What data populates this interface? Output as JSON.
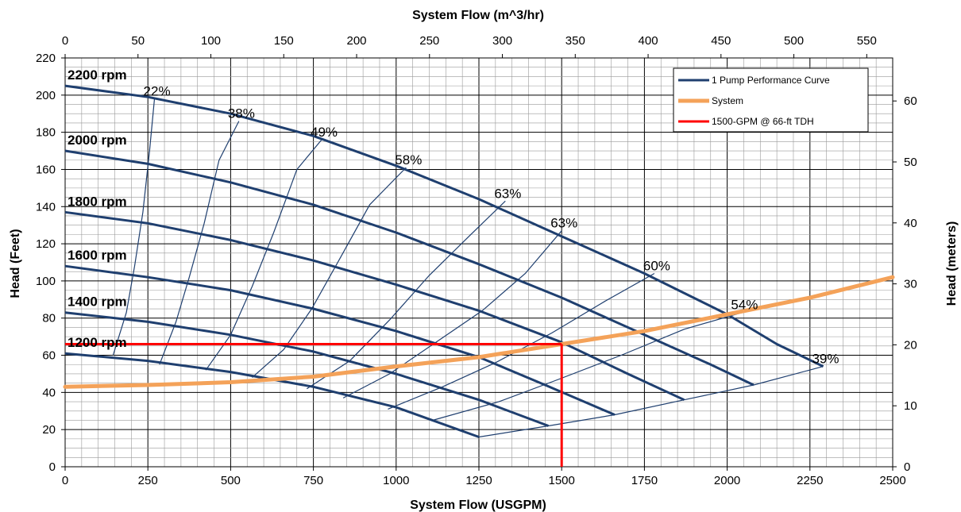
{
  "chart_data": {
    "type": "line",
    "top_axis_title": "System Flow (m^3/hr)",
    "bottom_axis_title": "System Flow (USGPM)",
    "left_axis_title": "Head (Feet)",
    "right_axis_title": "Head (meters)",
    "xlim": [
      0,
      2500
    ],
    "ylim": [
      0,
      220
    ],
    "x_ticks": [
      0,
      250,
      500,
      750,
      1000,
      1250,
      1500,
      1750,
      2000,
      2250,
      2500
    ],
    "y_ticks": [
      0,
      20,
      40,
      60,
      80,
      100,
      120,
      140,
      160,
      180,
      200,
      220
    ],
    "top_ticks": [
      0,
      50,
      100,
      150,
      200,
      250,
      300,
      350,
      400,
      450,
      500,
      550
    ],
    "right_ticks": [
      0,
      10,
      20,
      30,
      40,
      50,
      60
    ],
    "grid": true,
    "legend_position": "top-right",
    "legend": [
      {
        "name": "1  Pump Performance Curve",
        "color": "#1f3f6f"
      },
      {
        "name": "System",
        "color": "#f4a259"
      },
      {
        "name": "1500-GPM @ 66-ft TDH",
        "color": "#ff0000"
      }
    ],
    "speed_curves": [
      {
        "label": "2200 rpm",
        "points": [
          [
            0,
            205
          ],
          [
            250,
            199
          ],
          [
            500,
            190
          ],
          [
            750,
            178
          ],
          [
            1000,
            162
          ],
          [
            1250,
            144
          ],
          [
            1500,
            124
          ],
          [
            1750,
            104
          ],
          [
            2000,
            82
          ],
          [
            2150,
            66
          ],
          [
            2290,
            54
          ]
        ]
      },
      {
        "label": "2000 rpm",
        "points": [
          [
            0,
            170
          ],
          [
            250,
            163
          ],
          [
            500,
            153
          ],
          [
            750,
            141
          ],
          [
            1000,
            126
          ],
          [
            1250,
            109
          ],
          [
            1500,
            91
          ],
          [
            1750,
            71
          ],
          [
            1950,
            55
          ],
          [
            2080,
            44
          ]
        ]
      },
      {
        "label": "1800 rpm",
        "points": [
          [
            0,
            137
          ],
          [
            250,
            131
          ],
          [
            500,
            122
          ],
          [
            750,
            111
          ],
          [
            1000,
            98
          ],
          [
            1250,
            84
          ],
          [
            1500,
            67
          ],
          [
            1700,
            50
          ],
          [
            1870,
            36
          ]
        ]
      },
      {
        "label": "1600 rpm",
        "points": [
          [
            0,
            108
          ],
          [
            250,
            102
          ],
          [
            500,
            95
          ],
          [
            750,
            85
          ],
          [
            1000,
            73
          ],
          [
            1250,
            59
          ],
          [
            1450,
            44
          ],
          [
            1660,
            28
          ]
        ]
      },
      {
        "label": "1400 rpm",
        "points": [
          [
            0,
            83
          ],
          [
            250,
            78
          ],
          [
            500,
            71
          ],
          [
            750,
            62
          ],
          [
            1000,
            50
          ],
          [
            1250,
            36
          ],
          [
            1460,
            22
          ]
        ]
      },
      {
        "label": "1200 rpm",
        "points": [
          [
            0,
            61
          ],
          [
            250,
            57
          ],
          [
            500,
            51
          ],
          [
            750,
            43
          ],
          [
            1000,
            32
          ],
          [
            1250,
            16
          ]
        ]
      }
    ],
    "efficiency_lines": [
      {
        "label": "22%",
        "points": [
          [
            145,
            60
          ],
          [
            185,
            83
          ],
          [
            210,
            108
          ],
          [
            235,
            137
          ],
          [
            255,
            170
          ],
          [
            270,
            198
          ]
        ]
      },
      {
        "label": "38%",
        "points": [
          [
            285,
            55
          ],
          [
            335,
            78
          ],
          [
            375,
            102
          ],
          [
            420,
            131
          ],
          [
            465,
            165
          ],
          [
            525,
            186
          ]
        ]
      },
      {
        "label": "49%",
        "points": [
          [
            425,
            52
          ],
          [
            500,
            71
          ],
          [
            565,
            97
          ],
          [
            630,
            126
          ],
          [
            700,
            160
          ],
          [
            775,
            176
          ]
        ]
      },
      {
        "label": "58%",
        "points": [
          [
            565,
            48
          ],
          [
            660,
            63
          ],
          [
            745,
            85
          ],
          [
            830,
            112
          ],
          [
            920,
            141
          ],
          [
            1030,
            161
          ]
        ]
      },
      {
        "label": "63%",
        "points": [
          [
            730,
            42
          ],
          [
            860,
            57
          ],
          [
            980,
            79
          ],
          [
            1100,
            103
          ],
          [
            1220,
            124
          ],
          [
            1330,
            143
          ]
        ]
      },
      {
        "label": "63%",
        "points": [
          [
            840,
            37
          ],
          [
            980,
            50
          ],
          [
            1120,
            67
          ],
          [
            1260,
            84
          ],
          [
            1390,
            104
          ],
          [
            1500,
            127
          ]
        ]
      },
      {
        "label": "60%",
        "points": [
          [
            975,
            31
          ],
          [
            1140,
            43
          ],
          [
            1300,
            56
          ],
          [
            1470,
            72
          ],
          [
            1630,
            89
          ],
          [
            1780,
            104
          ]
        ]
      },
      {
        "label": "54%",
        "points": [
          [
            1110,
            25
          ],
          [
            1310,
            35
          ],
          [
            1490,
            47
          ],
          [
            1680,
            60
          ],
          [
            1870,
            74
          ],
          [
            2045,
            83
          ]
        ]
      },
      {
        "label": "39%",
        "points": [
          [
            1250,
            16
          ],
          [
            1460,
            22
          ],
          [
            1660,
            28
          ],
          [
            1870,
            36
          ],
          [
            2080,
            44
          ],
          [
            2290,
            54
          ]
        ]
      }
    ],
    "system_curve": [
      [
        0,
        43
      ],
      [
        250,
        44
      ],
      [
        500,
        45.5
      ],
      [
        750,
        48.5
      ],
      [
        1000,
        54
      ],
      [
        1250,
        59
      ],
      [
        1500,
        66
      ],
      [
        1750,
        73
      ],
      [
        2000,
        82
      ],
      [
        2250,
        91
      ],
      [
        2500,
        102
      ]
    ],
    "operating_point": {
      "x": 1500,
      "y": 66
    }
  }
}
